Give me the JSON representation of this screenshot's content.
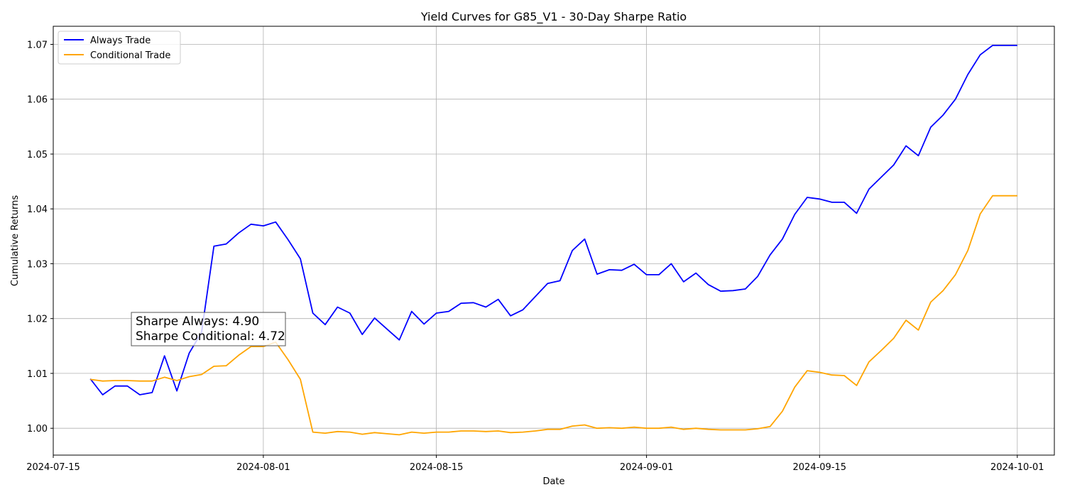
{
  "chart_data": {
    "type": "line",
    "title": "Yield Curves for G85_V1 - 30-Day Sharpe Ratio",
    "xlabel": "Date",
    "ylabel": "Cumulative Returns",
    "xlim": [
      "2024-07-15",
      "2024-10-04"
    ],
    "ylim": [
      0.9951,
      1.0733
    ],
    "x_ticks": [
      "2024-07-15",
      "2024-08-01",
      "2024-08-15",
      "2024-09-01",
      "2024-09-15",
      "2024-10-01"
    ],
    "y_ticks": [
      1.0,
      1.01,
      1.02,
      1.03,
      1.04,
      1.05,
      1.06,
      1.07
    ],
    "y_tick_labels": [
      "1.00",
      "1.01",
      "1.02",
      "1.03",
      "1.04",
      "1.05",
      "1.06",
      "1.07"
    ],
    "grid": true,
    "legend_position": "top-left",
    "annotation": {
      "lines": [
        "Sharpe Always: 4.90",
        "Sharpe Conditional: 4.72"
      ]
    },
    "series": [
      {
        "name": "Always Trade",
        "color": "#0000ff",
        "x": [
          "2024-07-18",
          "2024-07-19",
          "2024-07-20",
          "2024-07-21",
          "2024-07-22",
          "2024-07-23",
          "2024-07-24",
          "2024-07-25",
          "2024-07-26",
          "2024-07-27",
          "2024-07-28",
          "2024-07-29",
          "2024-07-30",
          "2024-07-31",
          "2024-08-01",
          "2024-08-02",
          "2024-08-03",
          "2024-08-04",
          "2024-08-05",
          "2024-08-06",
          "2024-08-07",
          "2024-08-08",
          "2024-08-09",
          "2024-08-10",
          "2024-08-11",
          "2024-08-12",
          "2024-08-13",
          "2024-08-14",
          "2024-08-15",
          "2024-08-16",
          "2024-08-17",
          "2024-08-18",
          "2024-08-19",
          "2024-08-20",
          "2024-08-21",
          "2024-08-22",
          "2024-08-23",
          "2024-08-24",
          "2024-08-25",
          "2024-08-26",
          "2024-08-27",
          "2024-08-28",
          "2024-08-29",
          "2024-08-30",
          "2024-08-31",
          "2024-09-01",
          "2024-09-02",
          "2024-09-03",
          "2024-09-04",
          "2024-09-05",
          "2024-09-06",
          "2024-09-07",
          "2024-09-08",
          "2024-09-09",
          "2024-09-10",
          "2024-09-11",
          "2024-09-12",
          "2024-09-13",
          "2024-09-14",
          "2024-09-15",
          "2024-09-16",
          "2024-09-17",
          "2024-09-18",
          "2024-09-19",
          "2024-09-20",
          "2024-09-21",
          "2024-09-22",
          "2024-09-23",
          "2024-09-24",
          "2024-09-25",
          "2024-09-26",
          "2024-09-27",
          "2024-09-28",
          "2024-09-29",
          "2024-09-30",
          "2024-10-01"
        ],
        "values": [
          1.009,
          1.0061,
          1.0077,
          1.0077,
          1.0061,
          1.0065,
          1.0132,
          1.0068,
          1.0137,
          1.0175,
          1.0332,
          1.0336,
          1.0356,
          1.0372,
          1.0369,
          1.0376,
          1.0344,
          1.0309,
          1.021,
          1.0189,
          1.0221,
          1.021,
          1.0171,
          1.0201,
          1.0181,
          1.0161,
          1.0213,
          1.019,
          1.021,
          1.0213,
          1.0228,
          1.0229,
          1.0221,
          1.0235,
          1.0205,
          1.0216,
          1.024,
          1.0264,
          1.0269,
          1.0324,
          1.0345,
          1.0281,
          1.0289,
          1.0288,
          1.0299,
          1.028,
          1.028,
          1.03,
          1.0267,
          1.0283,
          1.0262,
          1.025,
          1.0251,
          1.0254,
          1.0277,
          1.0316,
          1.0345,
          1.039,
          1.0421,
          1.0418,
          1.0412,
          1.0412,
          1.0392,
          1.0436,
          1.0458,
          1.048,
          1.0515,
          1.0497,
          1.0549,
          1.0571,
          1.06,
          1.0645,
          1.0681,
          1.0698,
          1.0698,
          1.0698
        ]
      },
      {
        "name": "Conditional Trade",
        "color": "#ffa500",
        "x": [
          "2024-07-18",
          "2024-07-19",
          "2024-07-20",
          "2024-07-21",
          "2024-07-22",
          "2024-07-23",
          "2024-07-24",
          "2024-07-25",
          "2024-07-26",
          "2024-07-27",
          "2024-07-28",
          "2024-07-29",
          "2024-07-30",
          "2024-07-31",
          "2024-08-01",
          "2024-08-02",
          "2024-08-03",
          "2024-08-04",
          "2024-08-05",
          "2024-08-06",
          "2024-08-07",
          "2024-08-08",
          "2024-08-09",
          "2024-08-10",
          "2024-08-11",
          "2024-08-12",
          "2024-08-13",
          "2024-08-14",
          "2024-08-15",
          "2024-08-16",
          "2024-08-17",
          "2024-08-18",
          "2024-08-19",
          "2024-08-20",
          "2024-08-21",
          "2024-08-22",
          "2024-08-23",
          "2024-08-24",
          "2024-08-25",
          "2024-08-26",
          "2024-08-27",
          "2024-08-28",
          "2024-08-29",
          "2024-08-30",
          "2024-08-31",
          "2024-09-01",
          "2024-09-02",
          "2024-09-03",
          "2024-09-04",
          "2024-09-05",
          "2024-09-06",
          "2024-09-07",
          "2024-09-08",
          "2024-09-09",
          "2024-09-10",
          "2024-09-11",
          "2024-09-12",
          "2024-09-13",
          "2024-09-14",
          "2024-09-15",
          "2024-09-16",
          "2024-09-17",
          "2024-09-18",
          "2024-09-19",
          "2024-09-20",
          "2024-09-21",
          "2024-09-22",
          "2024-09-23",
          "2024-09-24",
          "2024-09-25",
          "2024-09-26",
          "2024-09-27",
          "2024-09-28",
          "2024-09-29",
          "2024-09-30",
          "2024-10-01"
        ],
        "values": [
          1.0089,
          1.0086,
          1.0087,
          1.0087,
          1.0086,
          1.0086,
          1.0093,
          1.0087,
          1.0094,
          1.0098,
          1.0113,
          1.0114,
          1.0133,
          1.0149,
          1.0149,
          1.0157,
          1.0125,
          1.0089,
          0.9993,
          0.9991,
          0.9994,
          0.9993,
          0.9989,
          0.9992,
          0.999,
          0.9988,
          0.9993,
          0.9991,
          0.9993,
          0.9993,
          0.9995,
          0.9995,
          0.9994,
          0.9995,
          0.9992,
          0.9993,
          0.9995,
          0.9998,
          0.9998,
          1.0004,
          1.0006,
          1.0,
          1.0001,
          1.0,
          1.0002,
          1.0,
          1.0,
          1.0002,
          0.9998,
          1.0,
          0.9998,
          0.9997,
          0.9997,
          0.9997,
          0.9999,
          1.0003,
          1.0031,
          1.0075,
          1.0105,
          1.0102,
          1.0097,
          1.0096,
          1.0078,
          1.0121,
          1.0142,
          1.0164,
          1.0197,
          1.0179,
          1.023,
          1.0251,
          1.028,
          1.0324,
          1.0391,
          1.0424,
          1.0424,
          1.0424
        ]
      }
    ]
  }
}
